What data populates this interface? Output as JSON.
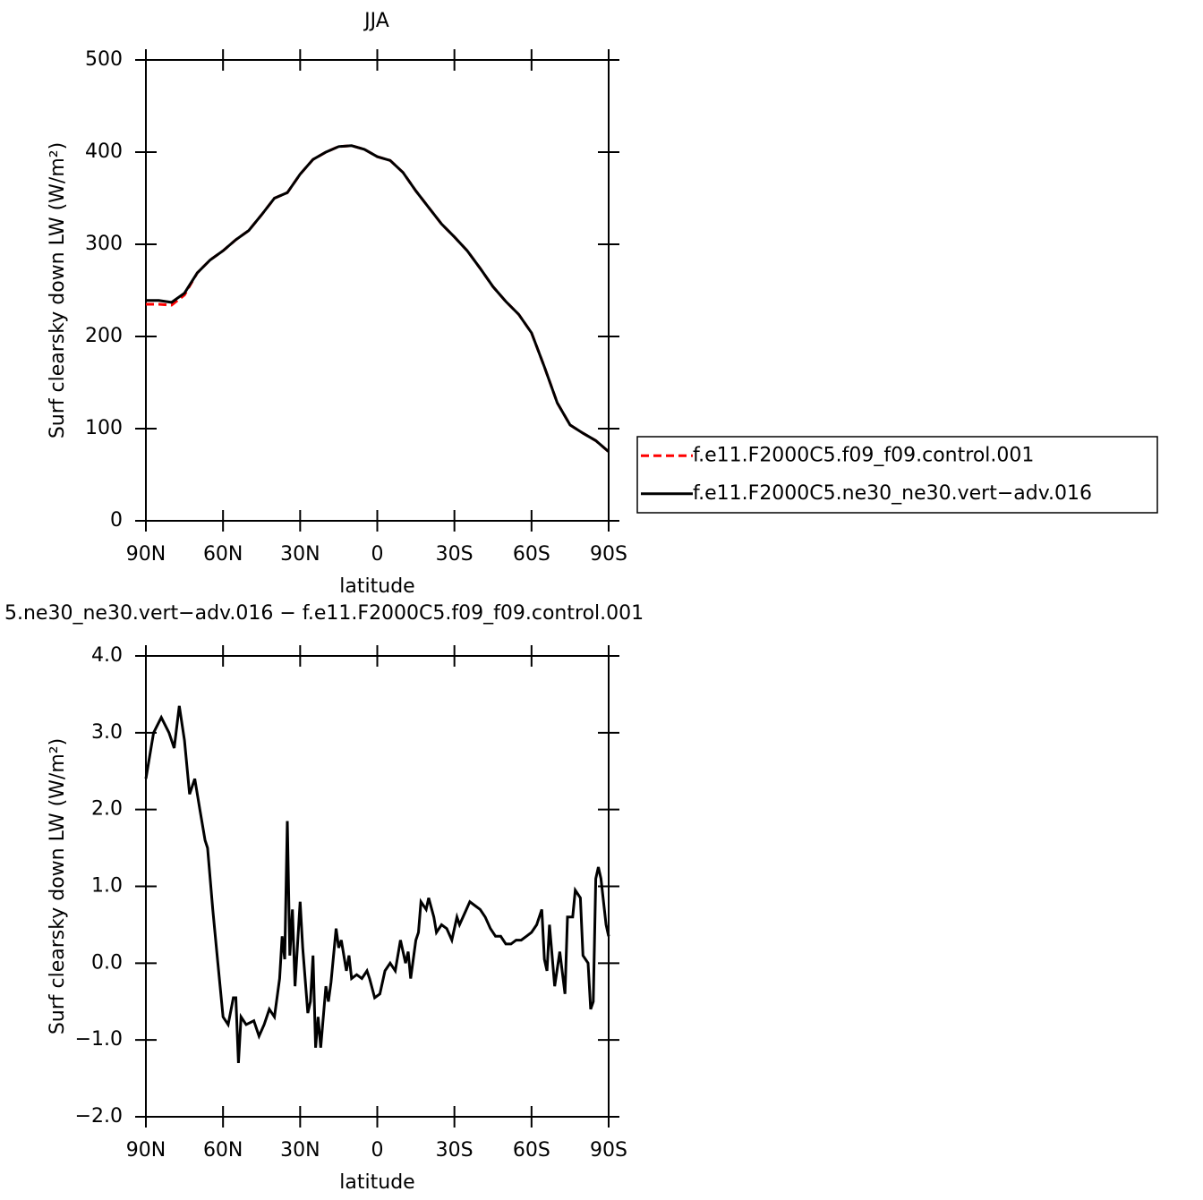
{
  "chart_data": [
    {
      "type": "line",
      "title": "JJA",
      "xlabel": "latitude",
      "ylabel": "Surf clearsky down LW (W/m²)",
      "x": [
        90,
        85,
        80,
        75,
        70,
        65,
        60,
        55,
        50,
        45,
        40,
        35,
        30,
        25,
        20,
        15,
        10,
        5,
        0,
        -5,
        -10,
        -15,
        -20,
        -25,
        -30,
        -35,
        -40,
        -45,
        -50,
        -55,
        -60,
        -65,
        -70,
        -75,
        -80,
        -85,
        -90
      ],
      "series": [
        {
          "name": "f.e11.F2000C5.f09_f09.control.001",
          "color": "#ff0000",
          "line_style": "dashed",
          "values": [
            235,
            235,
            234,
            245,
            269,
            283,
            293,
            305,
            315,
            332,
            350,
            356,
            376,
            392,
            400,
            406,
            407,
            403,
            395,
            391,
            378,
            358,
            340,
            322,
            308,
            293,
            274,
            254,
            238,
            224,
            204,
            167,
            128,
            104,
            95,
            87,
            75
          ]
        },
        {
          "name": "f.e11.F2000C5.ne30_ne30.vert−adv.016",
          "color": "#000000",
          "line_style": "solid",
          "values": [
            239,
            239,
            237,
            247,
            269,
            283,
            293,
            305,
            315,
            332,
            350,
            356,
            376,
            392,
            400,
            406,
            407,
            403,
            395,
            391,
            378,
            358,
            340,
            322,
            308,
            293,
            274,
            254,
            238,
            224,
            204,
            167,
            128,
            104,
            95,
            87,
            75
          ]
        }
      ],
      "xlim": [
        90,
        -90
      ],
      "xticks": [
        {
          "value": 90,
          "label": "90N"
        },
        {
          "value": 60,
          "label": "60N"
        },
        {
          "value": 30,
          "label": "30N"
        },
        0,
        {
          "value": -30,
          "label": "30S"
        },
        {
          "value": -60,
          "label": "60S"
        },
        {
          "value": -90,
          "label": "90S"
        }
      ],
      "ylim": [
        0,
        500
      ],
      "yticks": [
        0,
        100,
        200,
        300,
        400,
        500
      ],
      "legend": "right"
    },
    {
      "type": "line",
      "title": "5.ne30_ne30.vert−adv.016 − f.e11.F2000C5.f09_f09.control.001",
      "xlabel": "latitude",
      "ylabel": "Surf clearsky down LW (W/m²)",
      "x": [
        90,
        87,
        84,
        81,
        79,
        77,
        75,
        73,
        71,
        69,
        67,
        66,
        64,
        62,
        60,
        58,
        56,
        55,
        54,
        53,
        51,
        48,
        46,
        44,
        42,
        40,
        38,
        37,
        36,
        35,
        34,
        33,
        32,
        30,
        29,
        27,
        26,
        25,
        24,
        23,
        22,
        20,
        19,
        18,
        16,
        15,
        14,
        12,
        11,
        10,
        8,
        6,
        4,
        3,
        1,
        -1,
        -3,
        -5,
        -7,
        -9,
        -11,
        -12,
        -13,
        -15,
        -16,
        -17,
        -19,
        -20,
        -22,
        -23,
        -25,
        -27,
        -29,
        -31,
        -32,
        -34,
        -36,
        -38,
        -40,
        -42,
        -44,
        -46,
        -48,
        -50,
        -52,
        -54,
        -56,
        -58,
        -60,
        -62,
        -64,
        -65,
        -66,
        -67,
        -69,
        -71,
        -73,
        -74,
        -76,
        -77,
        -79,
        -80,
        -82,
        -83,
        -84,
        -85,
        -86,
        -87,
        -89,
        -90
      ],
      "values": [
        2.4,
        3.0,
        3.2,
        3.0,
        2.8,
        3.35,
        2.9,
        2.2,
        2.4,
        2.0,
        1.6,
        1.5,
        0.7,
        0.0,
        -0.7,
        -0.8,
        -0.45,
        -0.45,
        -1.3,
        -0.7,
        -0.8,
        -0.75,
        -0.95,
        -0.8,
        -0.6,
        -0.7,
        -0.2,
        0.35,
        0.05,
        1.85,
        0.1,
        0.7,
        -0.3,
        0.8,
        0.2,
        -0.65,
        -0.5,
        0.1,
        -1.1,
        -0.7,
        -1.1,
        -0.3,
        -0.5,
        -0.25,
        0.45,
        0.2,
        0.3,
        -0.1,
        0.1,
        -0.2,
        -0.15,
        -0.2,
        -0.1,
        -0.2,
        -0.45,
        -0.4,
        -0.1,
        0.0,
        -0.1,
        0.3,
        0.0,
        0.15,
        -0.2,
        0.3,
        0.4,
        0.8,
        0.7,
        0.85,
        0.6,
        0.4,
        0.5,
        0.45,
        0.3,
        0.6,
        0.5,
        0.65,
        0.8,
        0.75,
        0.7,
        0.6,
        0.45,
        0.35,
        0.35,
        0.25,
        0.25,
        0.3,
        0.3,
        0.35,
        0.4,
        0.5,
        0.7,
        0.05,
        -0.1,
        0.5,
        -0.3,
        0.15,
        -0.4,
        0.6,
        0.6,
        0.95,
        0.85,
        0.1,
        0.0,
        -0.6,
        -0.5,
        1.1,
        1.25,
        1.1,
        0.5,
        0.35
      ],
      "color": "#000000",
      "line_style": "solid",
      "xlim": [
        90,
        -90
      ],
      "xticks": [
        {
          "value": 90,
          "label": "90N"
        },
        {
          "value": 60,
          "label": "60N"
        },
        {
          "value": 30,
          "label": "30N"
        },
        0,
        {
          "value": -30,
          "label": "30S"
        },
        {
          "value": -60,
          "label": "60S"
        },
        {
          "value": -90,
          "label": "90S"
        }
      ],
      "ylim": [
        -2,
        4
      ],
      "yticks": [
        {
          "value": -2,
          "label": "−2.0"
        },
        {
          "value": -1,
          "label": "−1.0"
        },
        {
          "value": 0,
          "label": "0.0"
        },
        {
          "value": 1,
          "label": "1.0"
        },
        {
          "value": 2,
          "label": "2.0"
        },
        {
          "value": 3,
          "label": "3.0"
        },
        {
          "value": 4,
          "label": "4.0"
        }
      ]
    }
  ]
}
